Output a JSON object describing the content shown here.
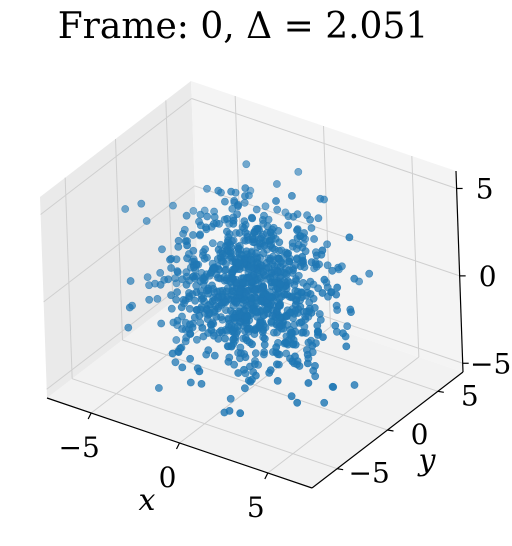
{
  "chart_data": {
    "type": "scatter",
    "projection": "3d",
    "title": "Frame: 0, Δ = 2.051",
    "xlabel": "x",
    "ylabel": "y",
    "zlabel": "",
    "xlim": [
      -7.5,
      7.5
    ],
    "ylim": [
      -7.5,
      7.5
    ],
    "zlim": [
      -5.5,
      6.0
    ],
    "xticks": [
      -5,
      0,
      5
    ],
    "yticks": [
      -5,
      0,
      5
    ],
    "zticks": [
      -5,
      0,
      5
    ],
    "xtick_labels": [
      "−5",
      "0",
      "5"
    ],
    "ytick_labels": [
      "−5",
      "0",
      "5"
    ],
    "ztick_labels": [
      "−5",
      "0",
      "5"
    ],
    "grid": true,
    "marker_color": "#1f77b4",
    "point_count": 1000,
    "distribution": "isotropic normal, sigma approx 2.05, centered at origin"
  }
}
